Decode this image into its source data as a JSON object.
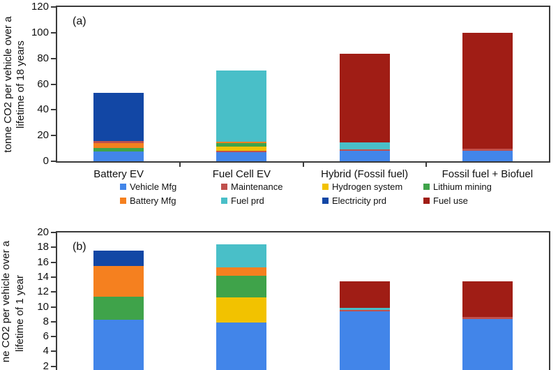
{
  "colors": {
    "Vehicle Mfg": "#4285E9",
    "Battery Mfg": "#F5801F",
    "Maintenance": "#C0504D",
    "Fuel prd": "#49BFC8",
    "Hydrogen system": "#F2C200",
    "Electricity prd": "#1247A5",
    "Lithium mining": "#3FA34A",
    "Fuel use": "#A01D15"
  },
  "legend": {
    "rows": [
      [
        "Vehicle Mfg",
        "Maintenance",
        "Hydrogen system",
        "Lithium mining"
      ],
      [
        "Battery Mfg",
        "Fuel prd",
        "Electricity prd",
        "Fuel use"
      ]
    ]
  },
  "chart_data": [
    {
      "id": "a",
      "type": "bar",
      "stacked": true,
      "panel_label": "(a)",
      "ylabel_line1": "tonne CO2 per vehicle over a",
      "ylabel_line2": "lifetime of 18 years",
      "ylim": [
        0,
        120
      ],
      "yticks": [
        0,
        20,
        40,
        60,
        80,
        100,
        120
      ],
      "grid": false,
      "x_labels_visible": true,
      "x_boundary_ticks": true,
      "categories": [
        "Battery EV",
        "Fuel Cell EV",
        "Hybrid (Fossil fuel)",
        "Fossil fuel + Biofuel"
      ],
      "bars": [
        {
          "category": "Battery EV",
          "total": 53.3,
          "segments": [
            [
              "Vehicle Mfg",
              7.5
            ],
            [
              "Lithium mining",
              3.0
            ],
            [
              "Battery Mfg",
              3.4
            ],
            [
              "Maintenance",
              1.6
            ],
            [
              "Electricity prd",
              37.8
            ]
          ]
        },
        {
          "category": "Fuel Cell EV",
          "total": 70.6,
          "segments": [
            [
              "Vehicle Mfg",
              7.3
            ],
            [
              "Maintenance",
              1.0
            ],
            [
              "Hydrogen system",
              3.2
            ],
            [
              "Lithium mining",
              2.9
            ],
            [
              "Battery Mfg",
              0.9
            ],
            [
              "Fuel prd",
              55.3
            ]
          ]
        },
        {
          "category": "Hybrid (Fossil fuel)",
          "total": 83.9,
          "segments": [
            [
              "Vehicle Mfg",
              7.9
            ],
            [
              "Maintenance",
              1.6
            ],
            [
              "Fuel prd",
              5.3
            ],
            [
              "Fuel use",
              69.1
            ]
          ]
        },
        {
          "category": "Fossil fuel + Biofuel",
          "total": 100.0,
          "segments": [
            [
              "Vehicle Mfg",
              8.0
            ],
            [
              "Maintenance",
              2.0
            ],
            [
              "Fuel use",
              90.0
            ]
          ]
        }
      ]
    },
    {
      "id": "b",
      "type": "bar",
      "stacked": true,
      "panel_label": "(b)",
      "ylabel_line1": "ne CO2 per vehicle over a",
      "ylabel_line2": "lifetime of 1 year",
      "ylim": [
        0,
        20
      ],
      "yticks": [
        2,
        4,
        6,
        8,
        10,
        12,
        14,
        16,
        18,
        20
      ],
      "grid": false,
      "x_labels_visible": false,
      "x_boundary_ticks": false,
      "categories": [
        "Battery EV",
        "Fuel Cell EV",
        "Hybrid (Fossil fuel)",
        "Fossil fuel + Biofuel"
      ],
      "bars": [
        {
          "category": "Battery EV",
          "total": 17.6,
          "segments": [
            [
              "Vehicle Mfg",
              8.3
            ],
            [
              "Lithium mining",
              3.1
            ],
            [
              "Battery Mfg",
              4.1
            ],
            [
              "Electricity prd",
              2.1
            ]
          ]
        },
        {
          "category": "Fuel Cell EV",
          "total": 18.4,
          "segments": [
            [
              "Vehicle Mfg",
              7.9
            ],
            [
              "Hydrogen system",
              3.4
            ],
            [
              "Lithium mining",
              2.9
            ],
            [
              "Battery Mfg",
              1.1
            ],
            [
              "Fuel prd",
              3.1
            ]
          ]
        },
        {
          "category": "Hybrid (Fossil fuel)",
          "total": 13.4,
          "segments": [
            [
              "Vehicle Mfg",
              9.4
            ],
            [
              "Maintenance",
              0.2
            ],
            [
              "Fuel prd",
              0.3
            ],
            [
              "Fuel use",
              3.5
            ]
          ]
        },
        {
          "category": "Fossil fuel + Biofuel",
          "total": 13.4,
          "segments": [
            [
              "Vehicle Mfg",
              8.4
            ],
            [
              "Maintenance",
              0.2
            ],
            [
              "Fuel use",
              4.8
            ]
          ]
        }
      ]
    }
  ]
}
